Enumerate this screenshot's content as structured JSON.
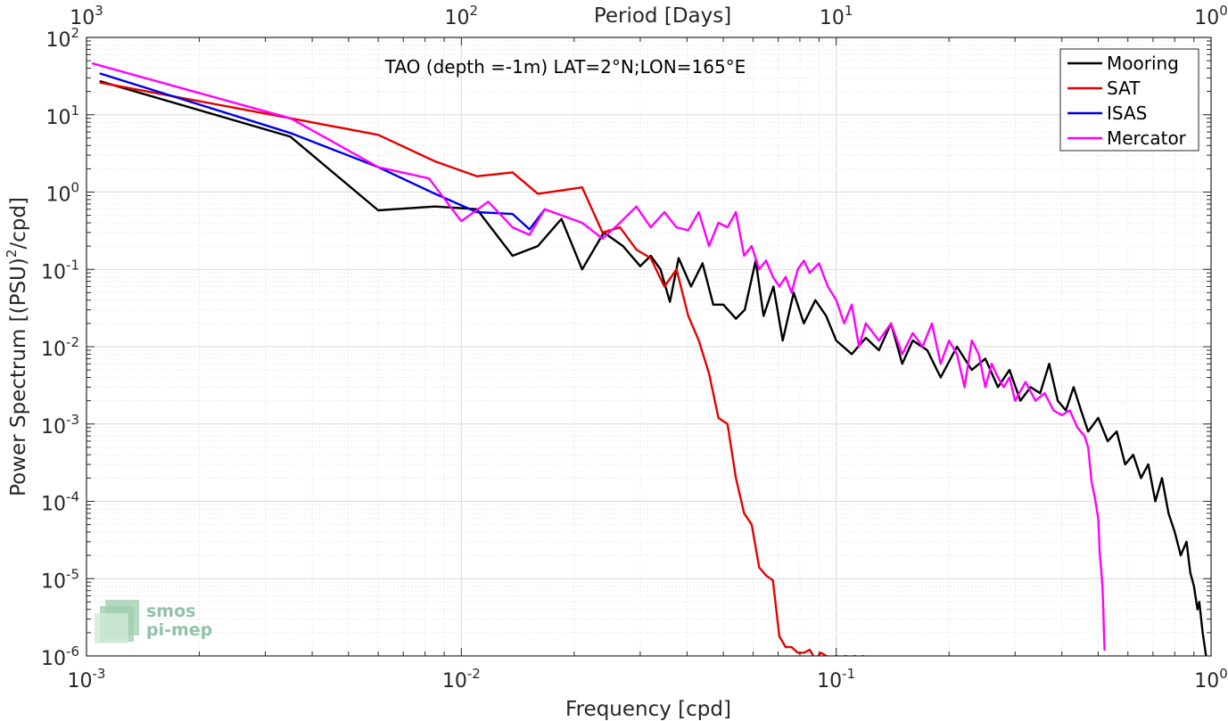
{
  "chart_data": {
    "type": "line",
    "title": "TAO (depth =-1m) LAT=2°N;LON=165°E",
    "xlabel": "Frequency [cpd]",
    "ylabel": "Power Spectrum [(PSU)",
    "ylabel_sup": "2",
    "ylabel_tail": "/cpd]",
    "top_xlabel": "Period [Days]",
    "x_scale": "log",
    "y_scale": "log",
    "xlim": [
      0.001,
      1
    ],
    "ylim": [
      1e-06,
      100
    ],
    "grid": true,
    "legend_position": "top-right",
    "x_ticks": [
      {
        "value": 0.001,
        "base": "10",
        "exp": "-3"
      },
      {
        "value": 0.01,
        "base": "10",
        "exp": "-2"
      },
      {
        "value": 0.1,
        "base": "10",
        "exp": "-1"
      },
      {
        "value": 1,
        "base": "10",
        "exp": "0"
      }
    ],
    "top_ticks": [
      {
        "value": 0.001,
        "base": "10",
        "exp": "3"
      },
      {
        "value": 0.01,
        "base": "10",
        "exp": "2"
      },
      {
        "value": 0.1,
        "base": "10",
        "exp": "1"
      },
      {
        "value": 1,
        "base": "10",
        "exp": "0"
      }
    ],
    "y_ticks": [
      {
        "value": 100,
        "base": "10",
        "exp": "2"
      },
      {
        "value": 10,
        "base": "10",
        "exp": "1"
      },
      {
        "value": 1,
        "base": "10",
        "exp": "0"
      },
      {
        "value": 0.1,
        "base": "10",
        "exp": "-1"
      },
      {
        "value": 0.01,
        "base": "10",
        "exp": "-2"
      },
      {
        "value": 0.001,
        "base": "10",
        "exp": "-3"
      },
      {
        "value": 0.0001,
        "base": "10",
        "exp": "-4"
      },
      {
        "value": 1e-05,
        "base": "10",
        "exp": "-5"
      },
      {
        "value": 1e-06,
        "base": "10",
        "exp": "-6"
      }
    ],
    "series": [
      {
        "name": "Mooring",
        "color": "#000000",
        "points": [
          [
            0.00109,
            27
          ],
          [
            0.0035,
            5.2
          ],
          [
            0.006,
            0.58
          ],
          [
            0.0085,
            0.65
          ],
          [
            0.011,
            0.6
          ],
          [
            0.0137,
            0.15
          ],
          [
            0.016,
            0.2
          ],
          [
            0.0185,
            0.45
          ],
          [
            0.021,
            0.1
          ],
          [
            0.024,
            0.3
          ],
          [
            0.027,
            0.2
          ],
          [
            0.03,
            0.11
          ],
          [
            0.032,
            0.15
          ],
          [
            0.034,
            0.1
          ],
          [
            0.036,
            0.038
          ],
          [
            0.038,
            0.14
          ],
          [
            0.041,
            0.06
          ],
          [
            0.044,
            0.12
          ],
          [
            0.047,
            0.035
          ],
          [
            0.05,
            0.035
          ],
          [
            0.054,
            0.023
          ],
          [
            0.057,
            0.03
          ],
          [
            0.061,
            0.13
          ],
          [
            0.064,
            0.025
          ],
          [
            0.068,
            0.06
          ],
          [
            0.072,
            0.012
          ],
          [
            0.077,
            0.05
          ],
          [
            0.082,
            0.02
          ],
          [
            0.088,
            0.04
          ],
          [
            0.094,
            0.025
          ],
          [
            0.1,
            0.012
          ],
          [
            0.11,
            0.008
          ],
          [
            0.12,
            0.013
          ],
          [
            0.13,
            0.009
          ],
          [
            0.14,
            0.02
          ],
          [
            0.15,
            0.006
          ],
          [
            0.16,
            0.012
          ],
          [
            0.175,
            0.009
          ],
          [
            0.19,
            0.004
          ],
          [
            0.21,
            0.01
          ],
          [
            0.23,
            0.005
          ],
          [
            0.25,
            0.007
          ],
          [
            0.27,
            0.003
          ],
          [
            0.29,
            0.005
          ],
          [
            0.31,
            0.002
          ],
          [
            0.33,
            0.003
          ],
          [
            0.35,
            0.0025
          ],
          [
            0.37,
            0.006
          ],
          [
            0.39,
            0.002
          ],
          [
            0.41,
            0.0015
          ],
          [
            0.43,
            0.003
          ],
          [
            0.45,
            0.0015
          ],
          [
            0.47,
            0.0008
          ],
          [
            0.5,
            0.0012
          ],
          [
            0.53,
            0.0006
          ],
          [
            0.56,
            0.0008
          ],
          [
            0.59,
            0.0003
          ],
          [
            0.62,
            0.0004
          ],
          [
            0.65,
            0.0002
          ],
          [
            0.68,
            0.0003
          ],
          [
            0.71,
            0.0001
          ],
          [
            0.74,
            0.0002
          ],
          [
            0.77,
            7e-05
          ],
          [
            0.8,
            4e-05
          ],
          [
            0.83,
            2e-05
          ],
          [
            0.86,
            3e-05
          ],
          [
            0.88,
            1.2e-05
          ],
          [
            0.9,
            8e-06
          ],
          [
            0.92,
            4e-06
          ],
          [
            0.93,
            5e-06
          ],
          [
            0.95,
            2e-06
          ],
          [
            0.97,
            1e-06
          ]
        ]
      },
      {
        "name": "SAT",
        "color": "#e60000",
        "points": [
          [
            0.00109,
            26
          ],
          [
            0.0035,
            9
          ],
          [
            0.006,
            5.5
          ],
          [
            0.0085,
            2.5
          ],
          [
            0.011,
            1.6
          ],
          [
            0.0137,
            1.8
          ],
          [
            0.016,
            0.95
          ],
          [
            0.0185,
            1.05
          ],
          [
            0.021,
            1.15
          ],
          [
            0.0238,
            0.3
          ],
          [
            0.0265,
            0.35
          ],
          [
            0.0293,
            0.18
          ],
          [
            0.032,
            0.14
          ],
          [
            0.0348,
            0.06
          ],
          [
            0.0375,
            0.1
          ],
          [
            0.0403,
            0.025
          ],
          [
            0.043,
            0.012
          ],
          [
            0.0458,
            0.0045
          ],
          [
            0.0485,
            0.0012
          ],
          [
            0.0513,
            0.001
          ],
          [
            0.054,
            0.0002
          ],
          [
            0.0568,
            7e-05
          ],
          [
            0.0595,
            5e-05
          ],
          [
            0.0623,
            1.4e-05
          ],
          [
            0.065,
            1.1e-05
          ],
          [
            0.0678,
            9.5e-06
          ],
          [
            0.0705,
            1.8e-06
          ],
          [
            0.0733,
            1.3e-06
          ],
          [
            0.076,
            1.3e-06
          ],
          [
            0.079,
            1.1e-06
          ],
          [
            0.082,
            1.1e-06
          ],
          [
            0.085,
            1.2e-06
          ],
          [
            0.088,
            9e-07
          ],
          [
            0.091,
            1.1e-06
          ],
          [
            0.094,
            1e-06
          ],
          [
            0.097,
            9.5e-07
          ],
          [
            0.1,
            1e-06
          ],
          [
            0.103,
            9.5e-07
          ],
          [
            0.106,
            1e-06
          ],
          [
            0.109,
            9.5e-07
          ],
          [
            0.112,
            1e-06
          ],
          [
            0.115,
            9.2e-07
          ],
          [
            0.118,
            1e-06
          ],
          [
            0.121,
            9.3e-07
          ],
          [
            0.124,
            9.5e-07
          ]
        ]
      },
      {
        "name": "ISAS",
        "color": "#0000e6",
        "points": [
          [
            0.00109,
            34
          ],
          [
            0.0035,
            5.8
          ],
          [
            0.006,
            2.1
          ],
          [
            0.0085,
            0.95
          ],
          [
            0.011,
            0.55
          ],
          [
            0.0137,
            0.52
          ],
          [
            0.0152,
            0.33
          ],
          [
            0.0167,
            0.6
          ]
        ]
      },
      {
        "name": "Mercator",
        "color": "#ff00ff",
        "points": [
          [
            0.00104,
            46
          ],
          [
            0.0035,
            9
          ],
          [
            0.006,
            2.1
          ],
          [
            0.0082,
            1.5
          ],
          [
            0.01,
            0.42
          ],
          [
            0.0118,
            0.75
          ],
          [
            0.0137,
            0.35
          ],
          [
            0.0152,
            0.28
          ],
          [
            0.0167,
            0.6
          ],
          [
            0.0185,
            0.5
          ],
          [
            0.021,
            0.4
          ],
          [
            0.0238,
            0.25
          ],
          [
            0.0265,
            0.4
          ],
          [
            0.0293,
            0.65
          ],
          [
            0.032,
            0.35
          ],
          [
            0.0348,
            0.55
          ],
          [
            0.0375,
            0.35
          ],
          [
            0.0403,
            0.32
          ],
          [
            0.043,
            0.55
          ],
          [
            0.0458,
            0.2
          ],
          [
            0.0485,
            0.4
          ],
          [
            0.0513,
            0.35
          ],
          [
            0.054,
            0.55
          ],
          [
            0.0568,
            0.15
          ],
          [
            0.0595,
            0.2
          ],
          [
            0.0623,
            0.1
          ],
          [
            0.065,
            0.13
          ],
          [
            0.0678,
            0.08
          ],
          [
            0.0705,
            0.06
          ],
          [
            0.0733,
            0.08
          ],
          [
            0.076,
            0.05
          ],
          [
            0.079,
            0.1
          ],
          [
            0.082,
            0.13
          ],
          [
            0.085,
            0.09
          ],
          [
            0.09,
            0.12
          ],
          [
            0.095,
            0.06
          ],
          [
            0.1,
            0.04
          ],
          [
            0.105,
            0.02
          ],
          [
            0.11,
            0.035
          ],
          [
            0.115,
            0.01
          ],
          [
            0.12,
            0.02
          ],
          [
            0.13,
            0.012
          ],
          [
            0.14,
            0.02
          ],
          [
            0.15,
            0.008
          ],
          [
            0.16,
            0.015
          ],
          [
            0.17,
            0.01
          ],
          [
            0.18,
            0.02
          ],
          [
            0.19,
            0.006
          ],
          [
            0.2,
            0.012
          ],
          [
            0.21,
            0.008
          ],
          [
            0.22,
            0.003
          ],
          [
            0.23,
            0.012
          ],
          [
            0.24,
            0.008
          ],
          [
            0.25,
            0.003
          ],
          [
            0.26,
            0.006
          ],
          [
            0.27,
            0.004
          ],
          [
            0.28,
            0.003
          ],
          [
            0.29,
            0.004
          ],
          [
            0.3,
            0.002
          ],
          [
            0.32,
            0.0035
          ],
          [
            0.34,
            0.002
          ],
          [
            0.36,
            0.0025
          ],
          [
            0.38,
            0.0015
          ],
          [
            0.4,
            0.0013
          ],
          [
            0.42,
            0.0015
          ],
          [
            0.44,
            0.0009
          ],
          [
            0.46,
            0.0007
          ],
          [
            0.47,
            0.0005
          ],
          [
            0.48,
            0.00018
          ],
          [
            0.49,
            0.00011
          ],
          [
            0.5,
            6e-05
          ],
          [
            0.505,
            2e-05
          ],
          [
            0.51,
            1.2e-05
          ],
          [
            0.513,
            8e-06
          ],
          [
            0.516,
            4e-06
          ],
          [
            0.518,
            2e-06
          ],
          [
            0.52,
            1.2e-06
          ]
        ]
      }
    ]
  },
  "logo": {
    "line1": "smos",
    "line2": "pi-mep"
  }
}
